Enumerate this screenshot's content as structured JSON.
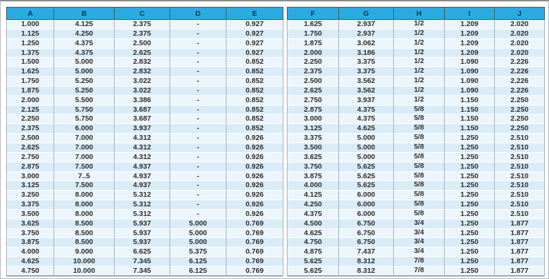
{
  "table": {
    "left_headers": [
      "A",
      "B",
      "C",
      "D",
      "E"
    ],
    "right_headers": [
      "F",
      "G",
      "H",
      "I",
      "J"
    ],
    "rows": [
      [
        "1.000",
        "4.125",
        "2.375",
        "-",
        "0.927",
        "1.625",
        "2.937",
        "1/2",
        "1.209",
        "2.020"
      ],
      [
        "1.125",
        "4.250",
        "2.375",
        "-",
        "0.927",
        "1.750",
        "2.937",
        "1/2",
        "1.209",
        "2.020"
      ],
      [
        "1.250",
        "4.375",
        "2.500",
        "-",
        "0.927",
        "1.875",
        "3.062",
        "1/2",
        "1.209",
        "2.020"
      ],
      [
        "1.375",
        "4.375",
        "2.625",
        "-",
        "0.927",
        "2.000",
        "3.186",
        "1/2",
        "1.209",
        "2.020"
      ],
      [
        "1.500",
        "5.000",
        "2.832",
        "-",
        "0.852",
        "2.250",
        "3.375",
        "1/2",
        "1.090",
        "2.226"
      ],
      [
        "1.625",
        "5.000",
        "2.832",
        "-",
        "0.852",
        "2.375",
        "3.375",
        "1/2",
        "1.090",
        "2.226"
      ],
      [
        "1.750",
        "5.250",
        "3.022",
        "-",
        "0.852",
        "2.500",
        "3.562",
        "1/2",
        "1.090",
        "2.226"
      ],
      [
        "1.875",
        "5.250",
        "3.022",
        "-",
        "0.852",
        "2.625",
        "3.562",
        "1/2",
        "1.090",
        "2.226"
      ],
      [
        "2.000",
        "5.500",
        "3.386",
        "-",
        "0.852",
        "2.750",
        "3.937",
        "1/2",
        "1.150",
        "2.250"
      ],
      [
        "2.125",
        "5.750",
        "3.687",
        "-",
        "0.852",
        "2.875",
        "4.375",
        "5/8",
        "1.150",
        "2.250"
      ],
      [
        "2.250",
        "5.750",
        "3.687",
        "-",
        "0.852",
        "3.000",
        "4.375",
        "5/8",
        "1.150",
        "2.250"
      ],
      [
        "2.375",
        "6.000",
        "3.937",
        "-",
        "0.852",
        "3.125",
        "4.625",
        "5/8",
        "1.150",
        "2.250"
      ],
      [
        "2.500",
        "7.000",
        "4.312",
        "-",
        "0.926",
        "3.375",
        "5.000",
        "5/8",
        "1.250",
        "2.510"
      ],
      [
        "2.625",
        "7.000",
        "4.312",
        "-",
        "0.926",
        "3.500",
        "5.000",
        "5/8",
        "1.250",
        "2.510"
      ],
      [
        "2.750",
        "7.000",
        "4.312",
        "-",
        "0.926",
        "3.625",
        "5.000",
        "5/8",
        "1.250",
        "2.510"
      ],
      [
        "2.875",
        "7.500",
        "4.937",
        "-",
        "0.926",
        "3.750",
        "5.625",
        "5/8",
        "1.250",
        "2.510"
      ],
      [
        "3.000",
        "7..5",
        "4.937",
        "-",
        "0.926",
        "3.875",
        "5.625",
        "5/8",
        "1.250",
        "2.510"
      ],
      [
        "3.125",
        "7.500",
        "4.937",
        "-",
        "0.926",
        "4.000",
        "5.625",
        "5/8",
        "1.250",
        "2.510"
      ],
      [
        "3.250",
        "8.000",
        "5.312",
        "-",
        "0.926",
        "4.125",
        "6.000",
        "5/8",
        "1.250",
        "2.510"
      ],
      [
        "3.375",
        "8.000",
        "5.312",
        "-",
        "0.926",
        "4.250",
        "6.000",
        "5/8",
        "1.250",
        "2.510"
      ],
      [
        "3.500",
        "8.000",
        "5.312",
        "-",
        "0.926",
        "4.375",
        "6.000",
        "5/8",
        "1.250",
        "2.510"
      ],
      [
        "3.625",
        "8.500",
        "5.937",
        "5.000",
        "0.769",
        "4.500",
        "6.750",
        "3/4",
        "1.250",
        "1.877"
      ],
      [
        "3.750",
        "8.500",
        "5.937",
        "5.000",
        "0.769",
        "4.625",
        "6.750",
        "3/4",
        "1.250",
        "1.877"
      ],
      [
        "3.875",
        "8.500",
        "5.937",
        "5.000",
        "0.769",
        "4.750",
        "6.750",
        "3/4",
        "1.250",
        "1.877"
      ],
      [
        "4.000",
        "9.000",
        "6.625",
        "5.375",
        "0.769",
        "4.875",
        "7.437",
        "3/4",
        "1.250",
        "1.877"
      ],
      [
        "4.625",
        "10.000",
        "7.345",
        "6.125",
        "0.769",
        "5.625",
        "8.312",
        "7/8",
        "1.250",
        "1.877"
      ],
      [
        "4.750",
        "10.000",
        "7.345",
        "6.125",
        "0.769",
        "5.625",
        "8.312",
        "7/8",
        "1.250",
        "1.877"
      ]
    ],
    "colors": {
      "header_bg": "#29abe2",
      "header_text": "#16324f",
      "row_light": "#ecf5fb",
      "row_dark": "#d9ecf8",
      "grid_line": "#9fb3bf",
      "outer_border": "#55606b",
      "cell_text": "#2e2e2e"
    }
  }
}
